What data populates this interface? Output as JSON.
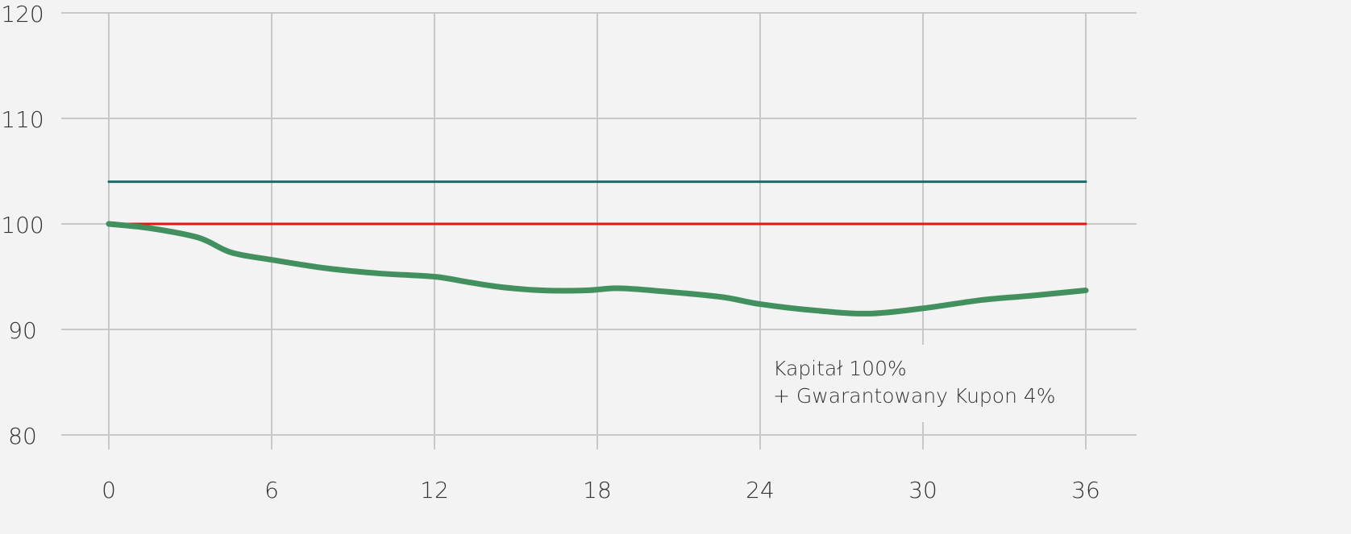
{
  "chart_data": {
    "type": "line",
    "xlim": [
      0,
      36
    ],
    "ylim": [
      80,
      120
    ],
    "x_ticks": [
      "0",
      "6",
      "12",
      "18",
      "24",
      "30",
      "36"
    ],
    "y_ticks": [
      "80",
      "90",
      "100",
      "110",
      "120"
    ],
    "grid": true,
    "annotation": [
      "Kapitał 100%",
      "+ Gwarantowany Kupon 4%"
    ],
    "series": [
      {
        "color": "#1f6b68",
        "x": [
          0,
          36
        ],
        "y": [
          104,
          104
        ]
      },
      {
        "color": "#ee1111",
        "x": [
          0,
          36
        ],
        "y": [
          100,
          100
        ]
      },
      {
        "color": "#43905f",
        "x": [
          0,
          1.5,
          3.3,
          4.5,
          6,
          8,
          10,
          12,
          13.2,
          14.5,
          16,
          17.6,
          18.7,
          20,
          22.5,
          24,
          26,
          28,
          30,
          32.2,
          34,
          36
        ],
        "y": [
          100,
          99.6,
          98.7,
          97.3,
          96.6,
          95.8,
          95.3,
          95.0,
          94.5,
          94.0,
          93.7,
          93.7,
          93.9,
          93.7,
          93.1,
          92.4,
          91.8,
          91.5,
          92.0,
          92.8,
          93.2,
          93.7
        ]
      }
    ],
    "colors": {
      "background": "#f3f3f3",
      "grid": "#c8c8c8"
    }
  }
}
